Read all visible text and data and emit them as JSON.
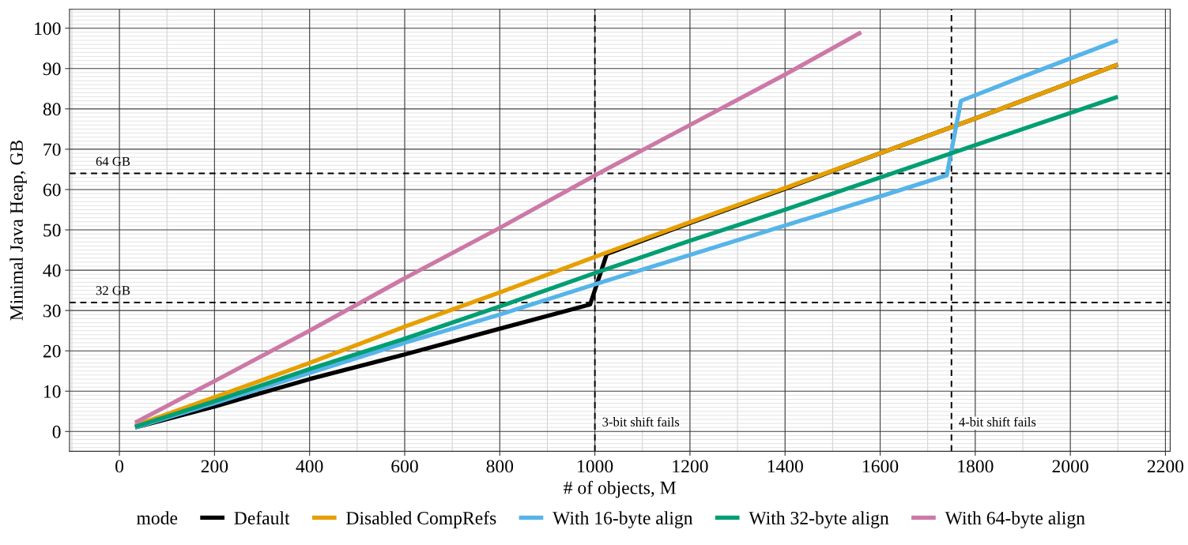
{
  "chart_data": {
    "type": "line",
    "xlabel": "# of objects, M",
    "ylabel": "Minimal Java Heap, GB",
    "legend_title": "mode",
    "xlim": [
      -105,
      2210
    ],
    "ylim": [
      -4.9,
      104.7
    ],
    "xticks": [
      0,
      200,
      400,
      600,
      800,
      1000,
      1200,
      1400,
      1600,
      1800,
      2000,
      2200
    ],
    "yticks": [
      0,
      10,
      20,
      30,
      40,
      50,
      60,
      70,
      80,
      90,
      100
    ],
    "grid": true,
    "legend": "bottom",
    "line_style": "solid",
    "marker": "none",
    "series": [
      {
        "name": "Default",
        "color": "#000000",
        "x": [
          33,
          200,
          400,
          600,
          800,
          990,
          1025,
          1200,
          1400,
          1600,
          1800,
          2000,
          2100
        ],
        "values": [
          1.0,
          6.2,
          13,
          19.1,
          25.5,
          31.5,
          44,
          51.7,
          60.2,
          69,
          77.6,
          86.5,
          91
        ]
      },
      {
        "name": "Disabled CompRefs",
        "color": "#e69f00",
        "x": [
          33,
          200,
          400,
          600,
          800,
          1000,
          1200,
          1400,
          1600,
          1800,
          2000,
          2100
        ],
        "values": [
          1.5,
          8.5,
          17,
          26,
          34.5,
          43.3,
          51.9,
          60.4,
          69,
          77.6,
          86.5,
          91
        ]
      },
      {
        "name": "With 16-byte align",
        "color": "#56b4e9",
        "x": [
          33,
          200,
          400,
          600,
          800,
          1000,
          1200,
          1400,
          1600,
          1740,
          1770,
          1900,
          2000,
          2100
        ],
        "values": [
          1.0,
          7,
          14.5,
          22,
          29,
          36.5,
          43.8,
          51.1,
          58.3,
          63.5,
          82,
          88,
          92.5,
          97
        ]
      },
      {
        "name": "With 32-byte align",
        "color": "#009e73",
        "x": [
          33,
          200,
          400,
          600,
          800,
          1000,
          1200,
          1400,
          1600,
          1800,
          2000,
          2100
        ],
        "values": [
          1.2,
          7.5,
          15.5,
          23,
          31,
          39.3,
          47.3,
          55,
          63,
          71,
          79,
          83
        ]
      },
      {
        "name": "With 64-byte align",
        "color": "#cc79a7",
        "x": [
          33,
          200,
          400,
          600,
          800,
          1000,
          1200,
          1400,
          1560
        ],
        "values": [
          2.2,
          12.5,
          25,
          38,
          50.5,
          63.5,
          76,
          88.5,
          99
        ]
      }
    ],
    "ref_lines": [
      {
        "axis": "y",
        "value": 32,
        "label": "32 GB",
        "color": "#000000",
        "line_style": "dashed"
      },
      {
        "axis": "y",
        "value": 64,
        "label": "64 GB",
        "color": "#000000",
        "line_style": "dashed"
      },
      {
        "axis": "x",
        "value": 1000,
        "label": "3-bit shift fails",
        "color": "#000000",
        "line_style": "dashed"
      },
      {
        "axis": "x",
        "value": 1750,
        "label": "4-bit shift fails",
        "color": "#000000",
        "line_style": "dashed"
      }
    ]
  }
}
